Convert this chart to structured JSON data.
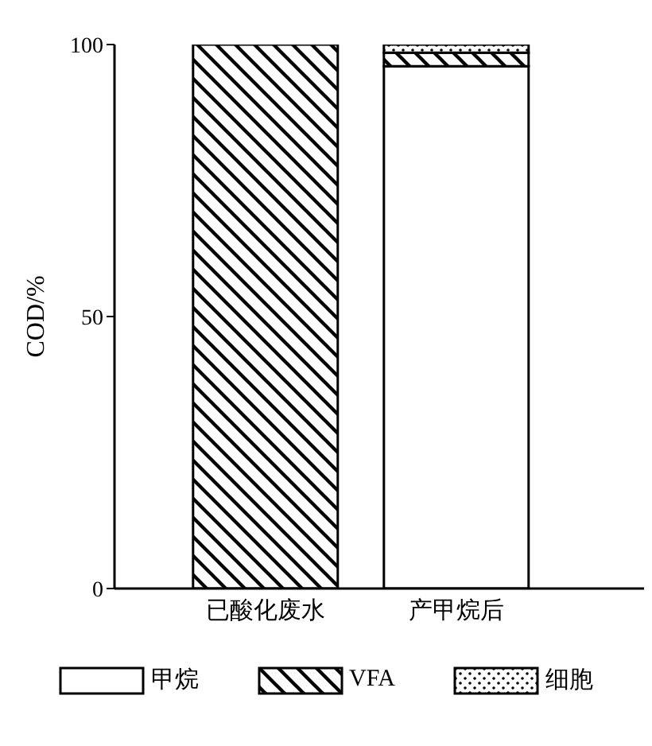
{
  "chart_data": {
    "type": "bar",
    "stacked": true,
    "ylabel": "COD/%",
    "categories": [
      "已酸化废水",
      "产甲烷后"
    ],
    "series": [
      {
        "name": "甲烷",
        "color": "#ffffff",
        "values": [
          null,
          96
        ]
      },
      {
        "name": "VFA",
        "color": "#000000",
        "values": [
          100,
          2.5
        ]
      },
      {
        "name": "细胞",
        "color": "#000000",
        "values": [
          null,
          1.5
        ]
      }
    ],
    "ylim": [
      0,
      100
    ],
    "yticks": [
      0,
      50,
      100
    ],
    "grid": false,
    "legend": "bottom"
  }
}
